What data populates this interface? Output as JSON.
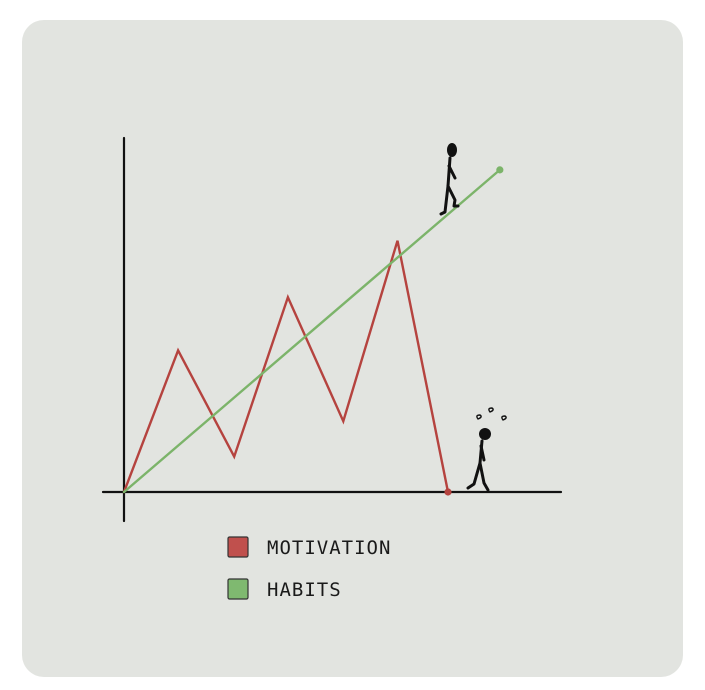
{
  "colors": {
    "card_background": "#e2e4e0",
    "axis": "#111111",
    "motivation": "#b5433f",
    "habits": "#7cb46a",
    "motivation_swatch": "#c0504d",
    "habits_swatch": "#7fb970"
  },
  "chart_data": {
    "type": "line",
    "title": "",
    "xlabel": "",
    "ylabel": "",
    "grid": false,
    "legend_placement": "bottom",
    "xlim": [
      0,
      10
    ],
    "ylim": [
      0,
      10
    ],
    "series": [
      {
        "name": "MOTIVATION",
        "color": "#b5433f",
        "x": [
          0,
          1.67,
          3.4,
          5.06,
          6.77,
          8.44,
          10
        ],
        "y": [
          0,
          4.0,
          1.0,
          5.5,
          2.0,
          7.1,
          0
        ]
      },
      {
        "name": "HABITS",
        "color": "#7cb46a",
        "x": [
          0,
          11.6
        ],
        "y": [
          0,
          9.1
        ]
      }
    ],
    "annotations": [
      {
        "icon": "walking-stick-figure-icon",
        "attached_to": "HABITS",
        "position": "end of line"
      },
      {
        "icon": "dizzy-stick-figure-icon",
        "attached_to": "MOTIVATION",
        "position": "end of line"
      }
    ]
  },
  "legend": {
    "items": [
      {
        "label": "MOTIVATION",
        "color": "#c0504d"
      },
      {
        "label": "HABITS",
        "color": "#7fb970"
      }
    ]
  }
}
